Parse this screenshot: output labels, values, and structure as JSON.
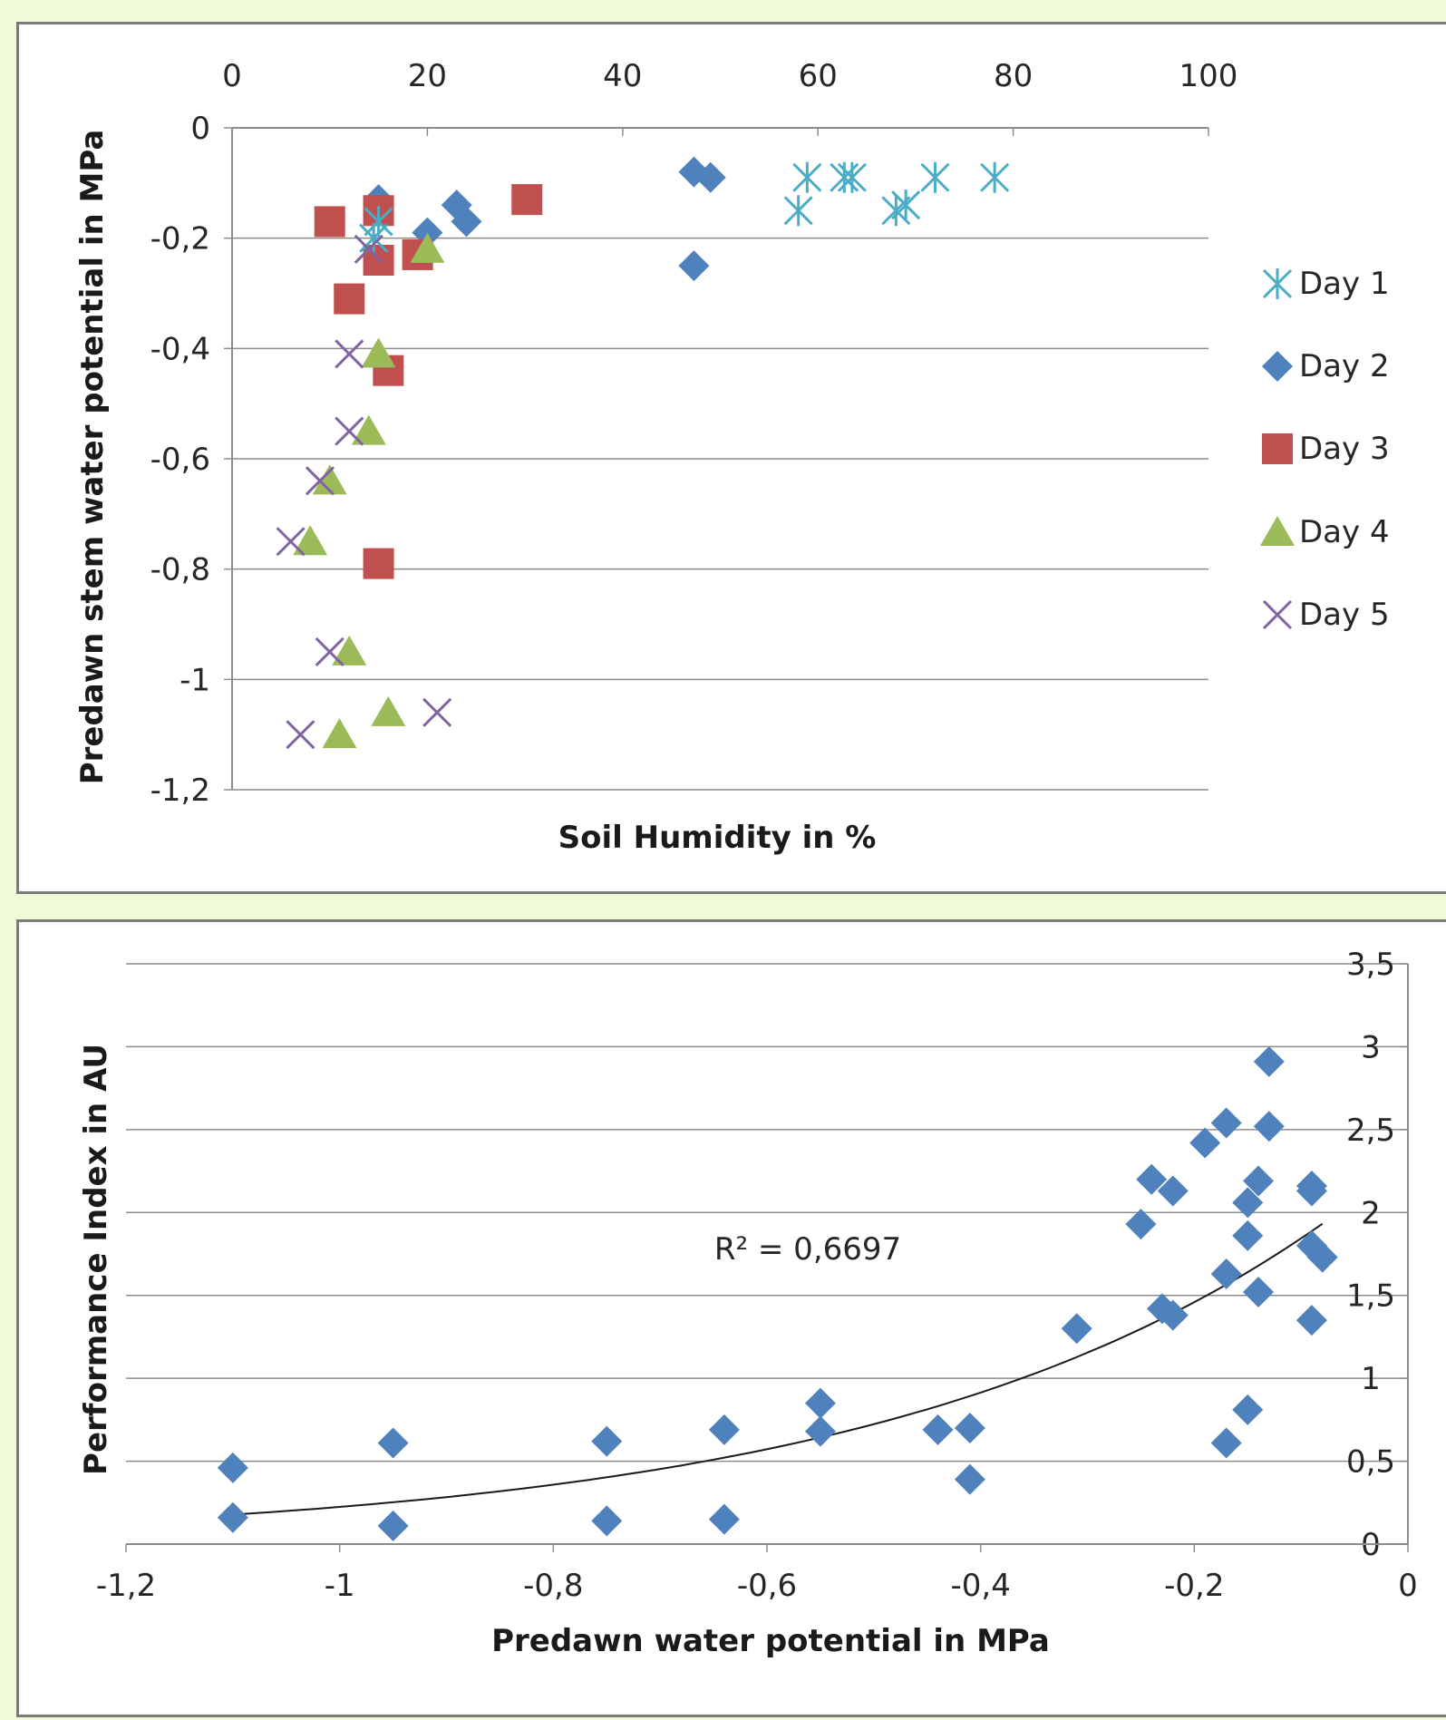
{
  "colors": {
    "day1": "#4bacc6",
    "day2": "#4f81bd",
    "day3": "#c0504d",
    "day4": "#9bbb59",
    "day5": "#8064a2",
    "gridline": "#8c8c8c",
    "axis": "#8c8c8c",
    "trendline": "#1a1a1a",
    "background": "#eefad8"
  },
  "chart_data": [
    {
      "type": "scatter",
      "title": "",
      "xlabel": "Soil Humidity in %",
      "ylabel": "Predawn stem water potential in MPa",
      "xlim": [
        0,
        100
      ],
      "ylim": [
        -1.2,
        0
      ],
      "x_ticks": [
        0,
        20,
        40,
        60,
        80,
        100
      ],
      "x_tick_labels": [
        "0",
        "20",
        "40",
        "60",
        "80",
        "100"
      ],
      "y_ticks": [
        0,
        -0.2,
        -0.4,
        -0.6,
        -0.8,
        -1,
        -1.2
      ],
      "y_tick_labels": [
        "0",
        "-0,2",
        "-0,4",
        "-0,6",
        "-0,8",
        "-1",
        "-1,2"
      ],
      "x_axis_position": "top",
      "grid": "horizontal",
      "legend_position": "right",
      "series": [
        {
          "name": "Day 1",
          "marker": "asterisk",
          "color": "#4bacc6",
          "points": [
            [
              58.9,
              -0.09
            ],
            [
              62.7,
              -0.09
            ],
            [
              63.5,
              -0.09
            ],
            [
              72.0,
              -0.09
            ],
            [
              78.1,
              -0.09
            ],
            [
              58.0,
              -0.15
            ],
            [
              68.0,
              -0.15
            ],
            [
              69.0,
              -0.14
            ],
            [
              15.0,
              -0.17
            ],
            [
              14.5,
              -0.2
            ]
          ]
        },
        {
          "name": "Day 2",
          "marker": "diamond",
          "color": "#4f81bd",
          "points": [
            [
              15.0,
              -0.13
            ],
            [
              20.0,
              -0.19
            ],
            [
              23.0,
              -0.14
            ],
            [
              24.0,
              -0.17
            ],
            [
              47.3,
              -0.08
            ],
            [
              49.0,
              -0.09
            ],
            [
              47.3,
              -0.25
            ]
          ]
        },
        {
          "name": "Day 3",
          "marker": "square",
          "color": "#c0504d",
          "points": [
            [
              10.0,
              -0.17
            ],
            [
              15.0,
              -0.15
            ],
            [
              15.0,
              -0.24
            ],
            [
              19.0,
              -0.23
            ],
            [
              30.2,
              -0.13
            ],
            [
              12.0,
              -0.31
            ],
            [
              16.0,
              -0.44
            ],
            [
              15.0,
              -0.79
            ]
          ]
        },
        {
          "name": "Day 4",
          "marker": "triangle",
          "color": "#9bbb59",
          "points": [
            [
              20.0,
              -0.22
            ],
            [
              15.0,
              -0.41
            ],
            [
              14.0,
              -0.55
            ],
            [
              10.0,
              -0.64
            ],
            [
              8.0,
              -0.75
            ],
            [
              12.0,
              -0.95
            ],
            [
              11.0,
              -1.1
            ],
            [
              16.0,
              -1.06
            ]
          ]
        },
        {
          "name": "Day 5",
          "marker": "x",
          "color": "#8064a2",
          "points": [
            [
              14.0,
              -0.22
            ],
            [
              12.0,
              -0.41
            ],
            [
              12.0,
              -0.55
            ],
            [
              9.0,
              -0.64
            ],
            [
              6.0,
              -0.75
            ],
            [
              10.0,
              -0.95
            ],
            [
              7.0,
              -1.1
            ],
            [
              21.0,
              -1.06
            ]
          ]
        }
      ]
    },
    {
      "type": "scatter",
      "title": "",
      "xlabel": "Predawn water potential in MPa",
      "ylabel": "Performance Index in AU",
      "xlim": [
        -1.2,
        0
      ],
      "ylim": [
        0,
        3.5
      ],
      "x_ticks": [
        -1.2,
        -1,
        -0.8,
        -0.6,
        -0.4,
        -0.2,
        0
      ],
      "x_tick_labels": [
        "-1,2",
        "-1",
        "-0,8",
        "-0,6",
        "-0,4",
        "-0,2",
        "0"
      ],
      "y_ticks": [
        0,
        0.5,
        1,
        1.5,
        2,
        2.5,
        3,
        3.5
      ],
      "y_tick_labels": [
        "0",
        "0,5",
        "1",
        "1,5",
        "2",
        "2,5",
        "3",
        "3,5"
      ],
      "y_axis_position": "right",
      "grid": "horizontal",
      "legend_position": "none",
      "annotation": "R² = 0,6697",
      "trendline": {
        "type": "exponential",
        "a": 2.33,
        "b": 2.34,
        "x_range": [
          -1.1,
          -0.08
        ]
      },
      "series": [
        {
          "name": "",
          "marker": "diamond",
          "color": "#4f81bd",
          "points": [
            [
              -1.1,
              0.46
            ],
            [
              -1.1,
              0.16
            ],
            [
              -0.95,
              0.61
            ],
            [
              -0.95,
              0.11
            ],
            [
              -0.75,
              0.62
            ],
            [
              -0.75,
              0.14
            ],
            [
              -0.64,
              0.69
            ],
            [
              -0.64,
              0.15
            ],
            [
              -0.55,
              0.85
            ],
            [
              -0.55,
              0.68
            ],
            [
              -0.44,
              0.69
            ],
            [
              -0.41,
              0.7
            ],
            [
              -0.41,
              0.39
            ],
            [
              -0.31,
              1.3
            ],
            [
              -0.25,
              1.93
            ],
            [
              -0.24,
              2.2
            ],
            [
              -0.23,
              1.42
            ],
            [
              -0.22,
              2.13
            ],
            [
              -0.22,
              1.38
            ],
            [
              -0.19,
              2.42
            ],
            [
              -0.17,
              2.54
            ],
            [
              -0.17,
              1.63
            ],
            [
              -0.17,
              0.61
            ],
            [
              -0.15,
              2.06
            ],
            [
              -0.15,
              1.86
            ],
            [
              -0.15,
              0.81
            ],
            [
              -0.14,
              2.19
            ],
            [
              -0.14,
              1.52
            ],
            [
              -0.13,
              2.91
            ],
            [
              -0.13,
              2.52
            ],
            [
              -0.09,
              2.16
            ],
            [
              -0.09,
              2.13
            ],
            [
              -0.09,
              1.8
            ],
            [
              -0.09,
              1.35
            ],
            [
              -0.08,
              1.73
            ]
          ]
        }
      ]
    }
  ]
}
